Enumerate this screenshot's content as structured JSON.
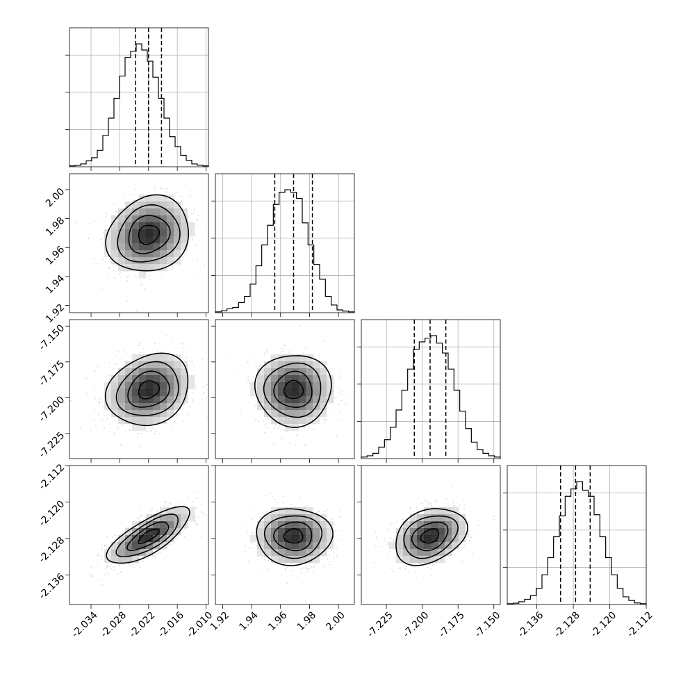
{
  "chart_data": {
    "type": "corner",
    "parameters": [
      {
        "mean": -2.022,
        "std": 0.0043,
        "range": [
          -2.0385,
          -2.0095
        ],
        "ticks": [
          "-2.034",
          "-2.028",
          "-2.022",
          "-2.016",
          "-2.010"
        ],
        "tick_values": [
          -2.034,
          -2.028,
          -2.022,
          -2.016,
          -2.01
        ],
        "quantiles": [
          -2.0247,
          -2.022,
          -2.0193
        ]
      },
      {
        "mean": 1.969,
        "std": 0.0131,
        "range": [
          1.915,
          2.011
        ],
        "ticks": [
          "1.92",
          "1.94",
          "1.96",
          "1.98",
          "2.00"
        ],
        "tick_values": [
          1.92,
          1.94,
          1.96,
          1.98,
          2.0
        ],
        "quantiles": [
          1.956,
          1.969,
          1.982
        ]
      },
      {
        "mean": -7.1945,
        "std": 0.0125,
        "range": [
          -7.2425,
          -7.1455
        ],
        "ticks": [
          "-7.225",
          "-7.200",
          "-7.175",
          "-7.150"
        ],
        "tick_values": [
          -7.225,
          -7.2,
          -7.175,
          -7.15
        ],
        "quantiles": [
          -7.2055,
          -7.1945,
          -7.1835
        ]
      },
      {
        "mean": -2.1275,
        "std": 0.0031,
        "range": [
          -2.1425,
          -2.112
        ],
        "ticks": [
          "-2.136",
          "-2.128",
          "-2.120",
          "-2.112"
        ],
        "tick_values": [
          -2.136,
          -2.128,
          -2.12,
          -2.112
        ],
        "quantiles": [
          -2.1308,
          -2.1275,
          -2.1243
        ]
      }
    ],
    "correlations": [
      {
        "pair": [
          0,
          1
        ],
        "r": 0.15
      },
      {
        "pair": [
          0,
          2
        ],
        "r": 0.2
      },
      {
        "pair": [
          1,
          2
        ],
        "r": 0.0
      },
      {
        "pair": [
          0,
          3
        ],
        "r": 0.75
      },
      {
        "pair": [
          1,
          3
        ],
        "r": 0.0
      },
      {
        "pair": [
          2,
          3
        ],
        "r": 0.3
      }
    ],
    "histograms": [
      [
        0.004,
        0.008,
        0.02,
        0.045,
        0.07,
        0.13,
        0.25,
        0.39,
        0.55,
        0.73,
        0.88,
        0.93,
        0.99,
        0.94,
        0.85,
        0.72,
        0.55,
        0.39,
        0.24,
        0.16,
        0.09,
        0.05,
        0.02,
        0.01,
        0.004
      ],
      [
        0.004,
        0.012,
        0.03,
        0.04,
        0.08,
        0.13,
        0.23,
        0.38,
        0.55,
        0.71,
        0.88,
        0.98,
        1.0,
        0.98,
        0.93,
        0.73,
        0.55,
        0.39,
        0.27,
        0.13,
        0.06,
        0.02,
        0.01,
        0.004
      ],
      [
        0.01,
        0.02,
        0.04,
        0.09,
        0.15,
        0.25,
        0.39,
        0.55,
        0.72,
        0.88,
        0.94,
        0.97,
        0.99,
        0.93,
        0.85,
        0.72,
        0.55,
        0.38,
        0.24,
        0.13,
        0.07,
        0.04,
        0.02,
        0.01
      ],
      [
        0.004,
        0.008,
        0.02,
        0.04,
        0.07,
        0.13,
        0.24,
        0.38,
        0.55,
        0.72,
        0.88,
        0.94,
        1.0,
        0.93,
        0.88,
        0.73,
        0.55,
        0.38,
        0.24,
        0.13,
        0.06,
        0.03,
        0.01,
        0.004
      ]
    ],
    "contour_levels_sigma": [
      0.5,
      1.0,
      1.5,
      2.0
    ],
    "grid": true,
    "xlabel": "",
    "ylabel": "",
    "title": ""
  }
}
